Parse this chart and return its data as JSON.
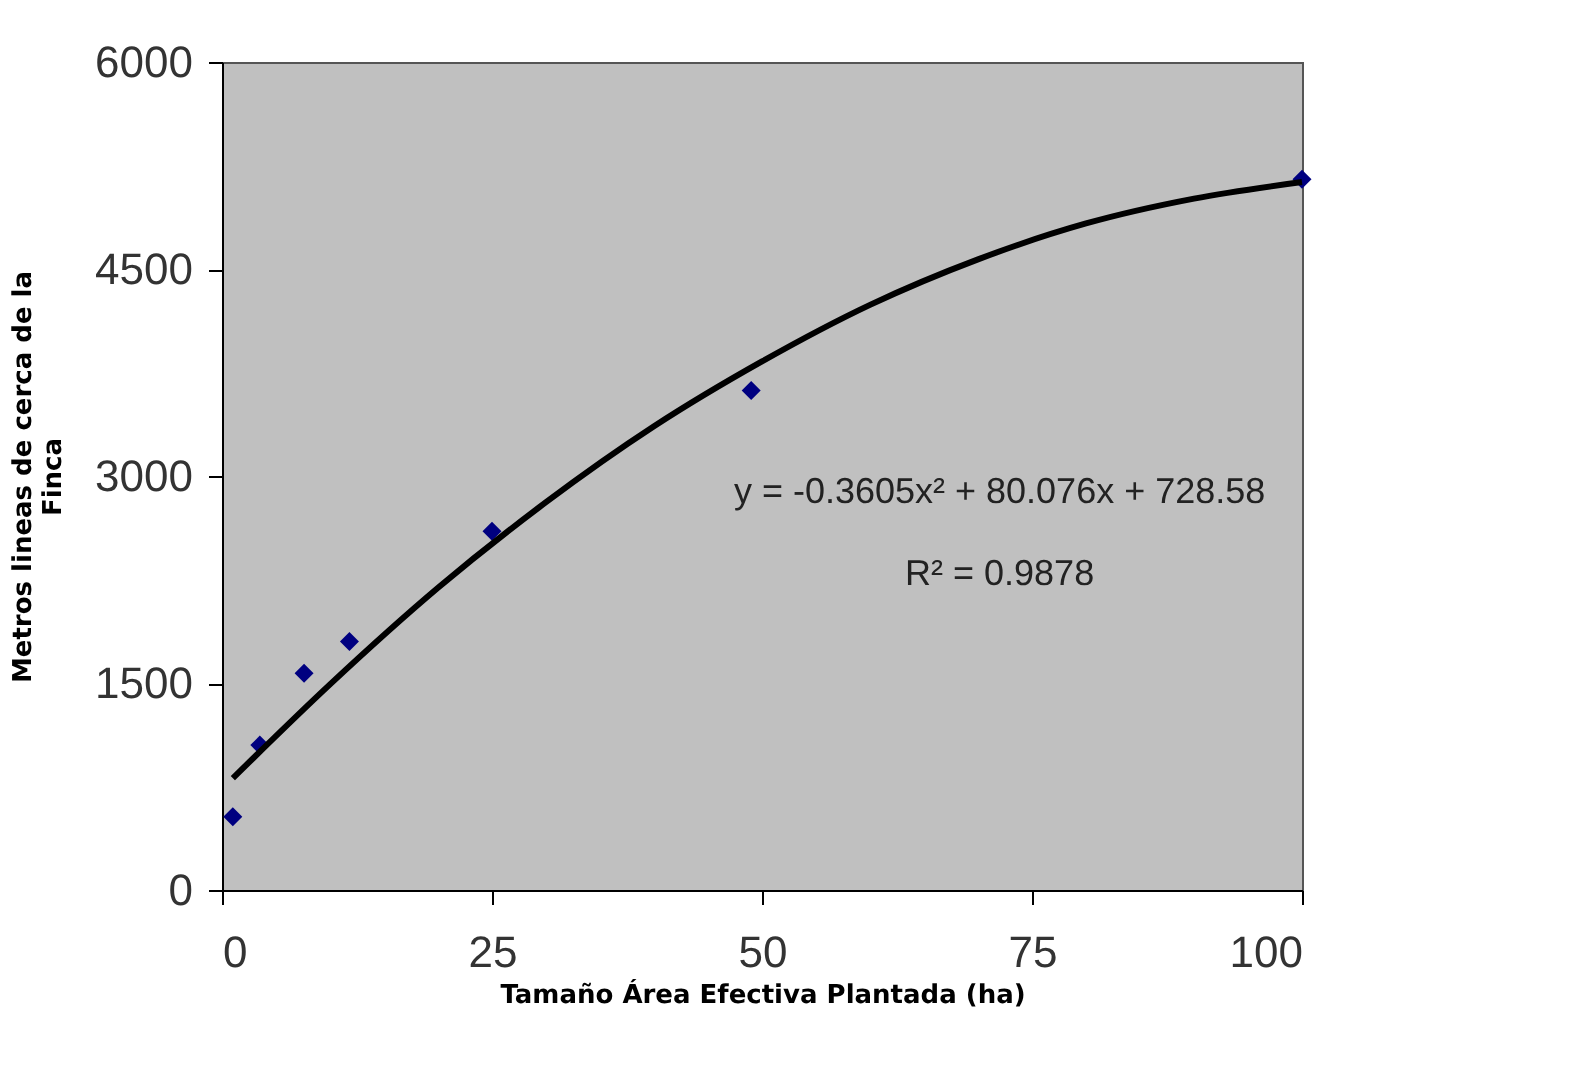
{
  "chart_data": {
    "type": "scatter",
    "xlabel": "Tamaño Área Efectiva Plantada (ha)",
    "ylabel": "Metros lineas de cerca de la Finca",
    "xlim": [
      0,
      100
    ],
    "xticks": [
      0,
      25,
      50,
      75,
      100
    ],
    "ylim": [
      0,
      6000
    ],
    "yticks": [
      0,
      1500,
      3000,
      4500,
      6000
    ],
    "grid": false,
    "series": [
      {
        "color": "#000080",
        "marker": "diamond",
        "x": [
          1,
          3.5,
          7.6,
          11.8,
          25,
          49,
          100
        ],
        "values": [
          530,
          1050,
          1570,
          1800,
          2600,
          3620,
          5150
        ]
      },
      {
        "type": "line",
        "color": "#000000",
        "line_style": "solid",
        "x": [
          1,
          10,
          20,
          30,
          40,
          50,
          60,
          70,
          80,
          90,
          100
        ],
        "values": [
          810,
          1490,
          2190,
          2810,
          3360,
          3830,
          4240,
          4570,
          4830,
          5010,
          5130
        ]
      }
    ],
    "annotations": [
      "y = -0.3605x² + 80.076x + 728.58",
      "R² = 0.9878"
    ]
  }
}
